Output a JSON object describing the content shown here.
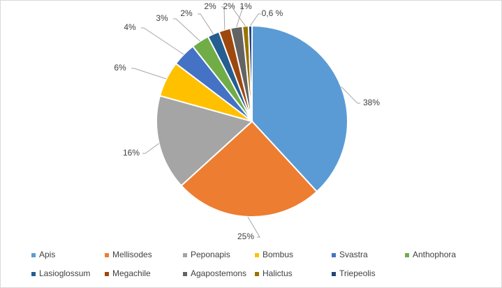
{
  "chart_data": {
    "type": "pie",
    "categories": [
      "Apis",
      "Mellisodes",
      "Peponapis",
      "Bombus",
      "Svastra",
      "Anthophora",
      "Lasioglossum",
      "Megachile",
      "Agapostemons",
      "Halictus",
      "Triepeolis"
    ],
    "values": [
      38,
      25,
      16,
      6,
      4,
      3,
      2,
      2,
      2,
      1,
      0.6
    ],
    "value_labels": [
      "38%",
      "25%",
      "16%",
      "6%",
      "4%",
      "3%",
      "2%",
      "2%",
      "2%",
      "1%",
      "0,6 %"
    ],
    "colors": [
      "#5b9bd5",
      "#ed7d31",
      "#a5a5a5",
      "#ffc000",
      "#4472c4",
      "#70ad47",
      "#255e91",
      "#9e480e",
      "#636363",
      "#997300",
      "#264478"
    ],
    "legend": "bottom"
  }
}
